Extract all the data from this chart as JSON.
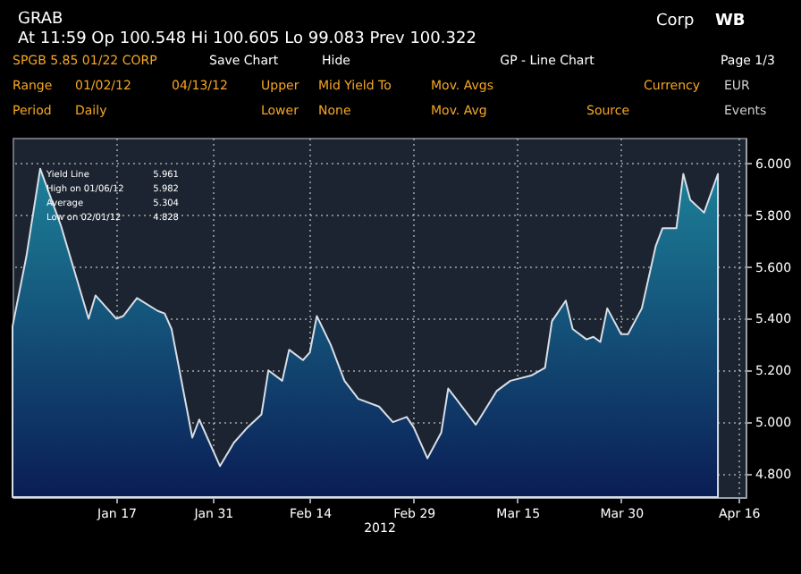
{
  "chart_data": {
    "type": "area",
    "title": "GRAB",
    "xlabel": "2012",
    "x": [
      "2012-01-02",
      "2012-01-04",
      "2012-01-06",
      "2012-01-09",
      "2012-01-13",
      "2012-01-14",
      "2012-01-17",
      "2012-01-18",
      "2012-01-20",
      "2012-01-23",
      "2012-01-24",
      "2012-01-25",
      "2012-01-28",
      "2012-01-29",
      "2012-02-01",
      "2012-02-03",
      "2012-02-05",
      "2012-02-07",
      "2012-02-08",
      "2012-02-10",
      "2012-02-11",
      "2012-02-13",
      "2012-02-14",
      "2012-02-15",
      "2012-02-17",
      "2012-02-19",
      "2012-02-21",
      "2012-02-24",
      "2012-02-26",
      "2012-02-28",
      "2012-02-29",
      "2012-03-02",
      "2012-03-04",
      "2012-03-05",
      "2012-03-07",
      "2012-03-09",
      "2012-03-12",
      "2012-03-14",
      "2012-03-17",
      "2012-03-19",
      "2012-03-20",
      "2012-03-22",
      "2012-03-23",
      "2012-03-25",
      "2012-03-26",
      "2012-03-27",
      "2012-03-28",
      "2012-03-30",
      "2012-03-31",
      "2012-04-02",
      "2012-04-04",
      "2012-04-05",
      "2012-04-07",
      "2012-04-08",
      "2012-04-09",
      "2012-04-11",
      "2012-04-13"
    ],
    "series": [
      {
        "color": "#d8dee6",
        "values": [
          5.37,
          5.64,
          5.98,
          5.76,
          5.4,
          5.49,
          5.4,
          5.41,
          5.48,
          5.43,
          5.42,
          5.36,
          4.94,
          5.01,
          4.83,
          4.92,
          4.98,
          5.03,
          5.2,
          5.16,
          5.28,
          5.24,
          5.27,
          5.41,
          5.3,
          5.16,
          5.09,
          5.06,
          5.0,
          5.02,
          4.98,
          4.86,
          4.96,
          5.13,
          5.06,
          4.99,
          5.12,
          5.16,
          5.18,
          5.21,
          5.39,
          5.47,
          5.36,
          5.32,
          5.33,
          5.31,
          5.44,
          5.34,
          5.34,
          5.44,
          5.68,
          5.75,
          5.75,
          5.96,
          5.86,
          5.81,
          5.96
        ]
      }
    ],
    "xlim": [
      "2012-01-02",
      "2012-04-17"
    ],
    "xticks": [
      {
        "value": "2012-01-17",
        "label": "Jan 17"
      },
      {
        "value": "2012-01-31",
        "label": "Jan 31"
      },
      {
        "value": "2012-02-14",
        "label": "Feb 14"
      },
      {
        "value": "2012-02-29",
        "label": "Feb 29"
      },
      {
        "value": "2012-03-15",
        "label": "Mar 15"
      },
      {
        "value": "2012-03-30",
        "label": "Mar 30"
      },
      {
        "value": "2012-04-16",
        "label": "Apr 16"
      }
    ],
    "ylim": [
      4.71,
      6.1
    ],
    "yticks": [
      {
        "value": 4.8,
        "label": "4.800"
      },
      {
        "value": 5.0,
        "label": "5.000"
      },
      {
        "value": 5.2,
        "label": "5.200"
      },
      {
        "value": 5.4,
        "label": "5.400"
      },
      {
        "value": 5.6,
        "label": "5.600"
      },
      {
        "value": 5.8,
        "label": "5.800"
      },
      {
        "value": 6.0,
        "label": "6.000"
      }
    ],
    "grid": true,
    "annotations": [
      "At 11:59  Op 100.548  Hi 100.605  Lo 99.083  Prev 100.322",
      "Corp",
      "WB",
      "SPGB 5.85 01/22 CORP",
      "Save Chart",
      "Hide",
      "GP - Line Chart",
      "Page 1/3",
      "Range",
      "01/02/12",
      "04/13/12",
      "Upper",
      "Mid Yield To",
      "Mov. Avgs",
      "Currency",
      "EUR",
      "Period",
      "Daily",
      "Lower",
      "None",
      "Mov. Avg",
      "Source",
      "Events",
      "Yield Line",
      "5.961",
      "High on 01/06/12",
      "5.982",
      "Average",
      "5.304",
      "Low on 02/01/12",
      "4.828"
    ]
  }
}
